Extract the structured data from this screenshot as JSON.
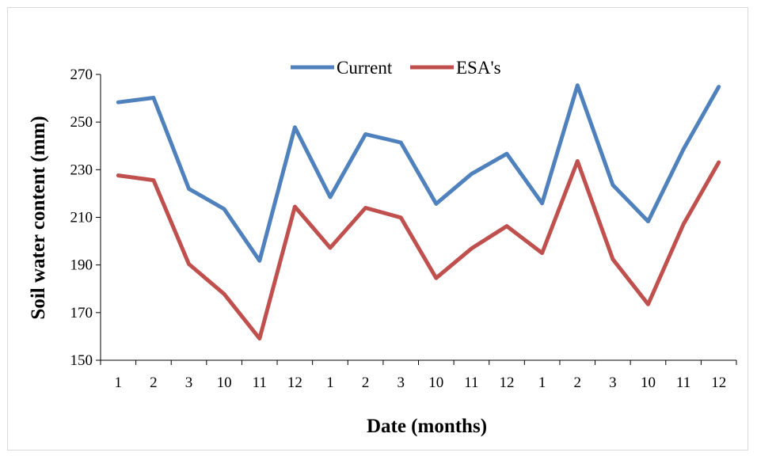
{
  "chart_data": {
    "type": "line",
    "categories": [
      "1",
      "2",
      "3",
      "10",
      "11",
      "12",
      "1",
      "2",
      "3",
      "10",
      "11",
      "12",
      "1",
      "2",
      "3",
      "10",
      "11",
      "12"
    ],
    "series": [
      {
        "name": "Current",
        "color": "#4f81bd",
        "values": [
          258.3,
          260.2,
          222,
          213.5,
          191.8,
          247.8,
          218.5,
          244.9,
          241.4,
          215.7,
          228.2,
          236.7,
          215.9,
          265.4,
          223.6,
          208.3,
          238.6,
          264.8
        ]
      },
      {
        "name": "ESA's",
        "color": "#c0504d",
        "values": [
          227.6,
          225.6,
          190.4,
          177.8,
          159.1,
          214.5,
          197.2,
          214,
          209.9,
          184.5,
          196.9,
          206.3,
          195,
          233.6,
          192.4,
          173.5,
          207.1,
          233.1
        ]
      }
    ],
    "xlabel": "Date (months)",
    "ylabel": "Soil water content (mm)",
    "ylim": [
      150,
      270
    ],
    "yticks": [
      "150",
      "170",
      "190",
      "210",
      "230",
      "250",
      "270"
    ],
    "grid": false,
    "legend_position": "top"
  }
}
